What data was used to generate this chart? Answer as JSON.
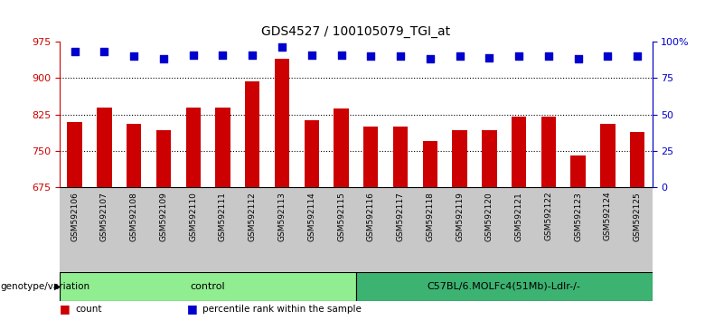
{
  "title": "GDS4527 / 100105079_TGI_at",
  "samples": [
    "GSM592106",
    "GSM592107",
    "GSM592108",
    "GSM592109",
    "GSM592110",
    "GSM592111",
    "GSM592112",
    "GSM592113",
    "GSM592114",
    "GSM592115",
    "GSM592116",
    "GSM592117",
    "GSM592118",
    "GSM592119",
    "GSM592120",
    "GSM592121",
    "GSM592122",
    "GSM592123",
    "GSM592124",
    "GSM592125"
  ],
  "bar_values": [
    810,
    840,
    805,
    793,
    840,
    840,
    893,
    940,
    813,
    838,
    800,
    800,
    770,
    793,
    793,
    820,
    820,
    740,
    805,
    788
  ],
  "percentile_values": [
    93,
    93,
    90,
    88,
    91,
    91,
    91,
    96,
    91,
    91,
    90,
    90,
    88,
    90,
    89,
    90,
    90,
    88,
    90,
    90
  ],
  "bar_color": "#cc0000",
  "dot_color": "#0000cc",
  "ylim_left": [
    675,
    975
  ],
  "ylim_right": [
    0,
    100
  ],
  "yticks_left": [
    675,
    750,
    825,
    900,
    975
  ],
  "yticks_right": [
    0,
    25,
    50,
    75,
    100
  ],
  "ytick_labels_right": [
    "0",
    "25",
    "50",
    "75",
    "100%"
  ],
  "grid_values": [
    750,
    825,
    900
  ],
  "groups": [
    {
      "label": "control",
      "start": 0,
      "end": 9,
      "color": "#90EE90"
    },
    {
      "label": "C57BL/6.MOLFc4(51Mb)-Ldlr-/-",
      "start": 10,
      "end": 19,
      "color": "#3CB371"
    }
  ],
  "group_row_label": "genotype/variation",
  "legend_items": [
    {
      "color": "#cc0000",
      "label": "count"
    },
    {
      "color": "#0000cc",
      "label": "percentile rank within the sample"
    }
  ],
  "bar_width": 0.5,
  "dot_size": 40,
  "dot_marker": "s",
  "background_color": "#ffffff",
  "plot_bg_color": "#ffffff",
  "tick_area_bg": "#c8c8c8"
}
